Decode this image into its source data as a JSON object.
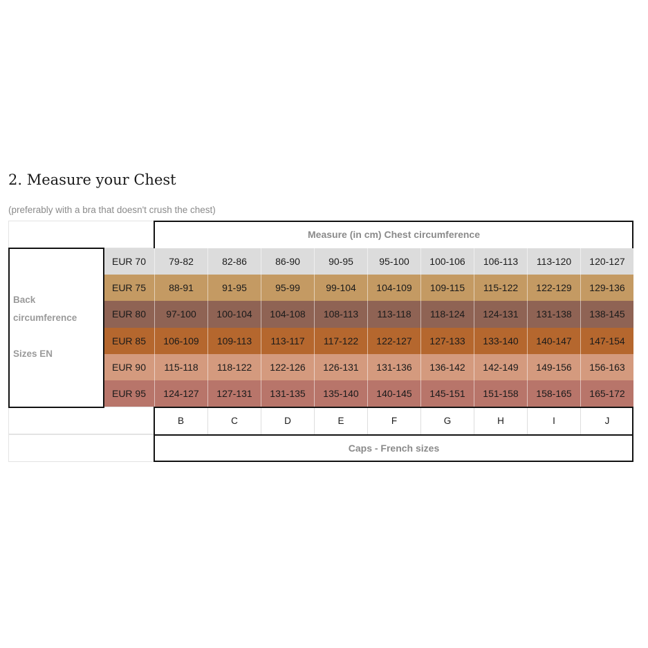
{
  "title": "2. Measure your Chest",
  "subtitle": "(preferably with a bra that doesn't crush the chest)",
  "table": {
    "header": "Measure (in cm) Chest circumference",
    "back_label_line1": "Back",
    "back_label_line2": "circumference",
    "back_label_line3": "Sizes EN",
    "footer": "Caps - French sizes",
    "cups": [
      "B",
      "C",
      "D",
      "E",
      "F",
      "G",
      "H",
      "I",
      "J"
    ],
    "rows": [
      {
        "label": "EUR 70",
        "color": "#dcdcdc",
        "values": [
          "79-82",
          "82-86",
          "86-90",
          "90-95",
          "95-100",
          "100-106",
          "106-113",
          "113-120",
          "120-127"
        ]
      },
      {
        "label": "EUR 75",
        "color": "#c49a63",
        "values": [
          "88-91",
          "91-95",
          "95-99",
          "99-104",
          "104-109",
          "109-115",
          "115-122",
          "122-129",
          "129-136"
        ]
      },
      {
        "label": "EUR 80",
        "color": "#8f6354",
        "values": [
          "97-100",
          "100-104",
          "104-108",
          "108-113",
          "113-118",
          "118-124",
          "124-131",
          "131-138",
          "138-145"
        ]
      },
      {
        "label": "EUR 85",
        "color": "#b5672e",
        "values": [
          "106-109",
          "109-113",
          "113-117",
          "117-122",
          "122-127",
          "127-133",
          "133-140",
          "140-147",
          "147-154"
        ]
      },
      {
        "label": "EUR 90",
        "color": "#d49a7e",
        "values": [
          "115-118",
          "118-122",
          "122-126",
          "126-131",
          "131-136",
          "136-142",
          "142-149",
          "149-156",
          "156-163"
        ]
      },
      {
        "label": "EUR 95",
        "color": "#b8756a",
        "values": [
          "124-127",
          "127-131",
          "131-135",
          "135-140",
          "140-145",
          "145-151",
          "151-158",
          "158-165",
          "165-172"
        ]
      }
    ]
  }
}
